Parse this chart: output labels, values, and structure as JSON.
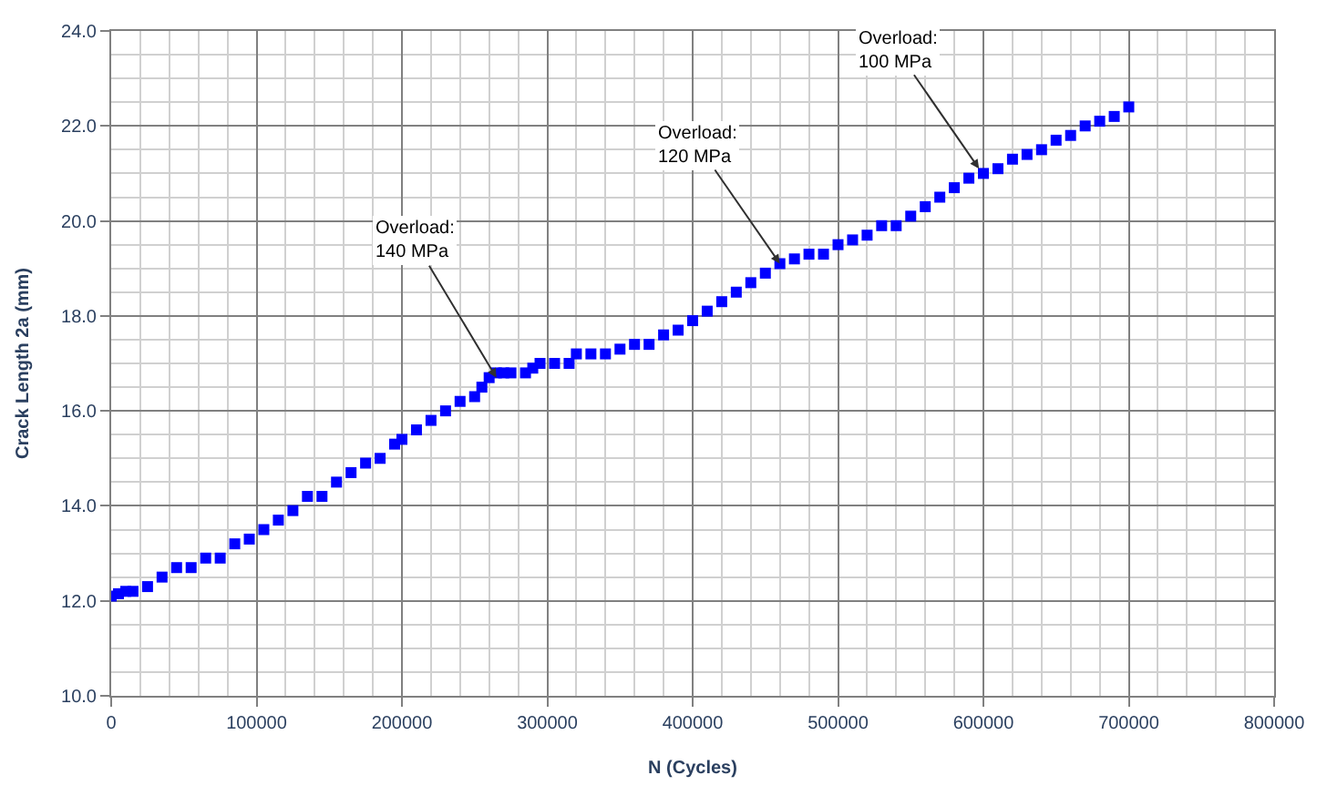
{
  "chart_data": {
    "type": "scatter",
    "xlabel": "N (Cycles)",
    "ylabel": "Crack Length 2a (mm)",
    "x": [
      0,
      5000,
      10000,
      15000,
      25000,
      35000,
      45000,
      55000,
      65000,
      75000,
      85000,
      95000,
      105000,
      115000,
      125000,
      135000,
      145000,
      155000,
      165000,
      175000,
      185000,
      195000,
      200000,
      210000,
      220000,
      230000,
      240000,
      250000,
      255000,
      260000,
      265000,
      270000,
      275000,
      285000,
      290000,
      295000,
      305000,
      315000,
      320000,
      330000,
      340000,
      350000,
      360000,
      370000,
      380000,
      390000,
      400000,
      410000,
      420000,
      430000,
      440000,
      450000,
      460000,
      470000,
      480000,
      490000,
      500000,
      510000,
      520000,
      530000,
      540000,
      550000,
      560000,
      570000,
      580000,
      590000,
      600000,
      610000,
      620000,
      630000,
      640000,
      650000,
      660000,
      670000,
      680000,
      690000,
      700000
    ],
    "series": [
      {
        "color": "#0000ff",
        "values": [
          12.1,
          12.15,
          12.2,
          12.2,
          12.3,
          12.5,
          12.7,
          12.7,
          12.9,
          12.9,
          13.2,
          13.3,
          13.5,
          13.7,
          13.9,
          14.2,
          14.2,
          14.5,
          14.7,
          14.9,
          15.0,
          15.3,
          15.4,
          15.6,
          15.8,
          16.0,
          16.2,
          16.3,
          16.5,
          16.7,
          16.8,
          16.8,
          16.8,
          16.8,
          16.9,
          17.0,
          17.0,
          17.0,
          17.2,
          17.2,
          17.2,
          17.3,
          17.4,
          17.4,
          17.6,
          17.7,
          17.9,
          18.1,
          18.3,
          18.5,
          18.7,
          18.9,
          19.1,
          19.2,
          19.3,
          19.3,
          19.5,
          19.6,
          19.7,
          19.9,
          19.9,
          20.1,
          20.3,
          20.5,
          20.7,
          20.9,
          21.0,
          21.1,
          21.3,
          21.4,
          21.5,
          21.7,
          21.8,
          22.0,
          22.1,
          22.2,
          22.4
        ]
      }
    ],
    "xlim": [
      0,
      800000
    ],
    "xticks": [
      0,
      100000,
      200000,
      300000,
      400000,
      500000,
      600000,
      700000,
      800000
    ],
    "ylim": [
      10,
      24
    ],
    "yticks": [
      {
        "value": 10,
        "label": "10.0"
      },
      {
        "value": 12,
        "label": "12.0"
      },
      {
        "value": 14,
        "label": "14.0"
      },
      {
        "value": 16,
        "label": "16.0"
      },
      {
        "value": 18,
        "label": "18.0"
      },
      {
        "value": 20,
        "label": "20.0"
      },
      {
        "value": 22,
        "label": "22.0"
      },
      {
        "value": 24,
        "label": "24.0"
      }
    ],
    "grid": true,
    "marker": "square",
    "annotations": [
      {
        "text": "Overload:\n140 MPa",
        "x": 265000,
        "y": 16.7
      },
      {
        "text": "Overload:\n120 MPa",
        "x": 460000,
        "y": 19.1
      },
      {
        "text": "Overload:\n100 MPa",
        "x": 597000,
        "y": 21.1
      }
    ]
  }
}
